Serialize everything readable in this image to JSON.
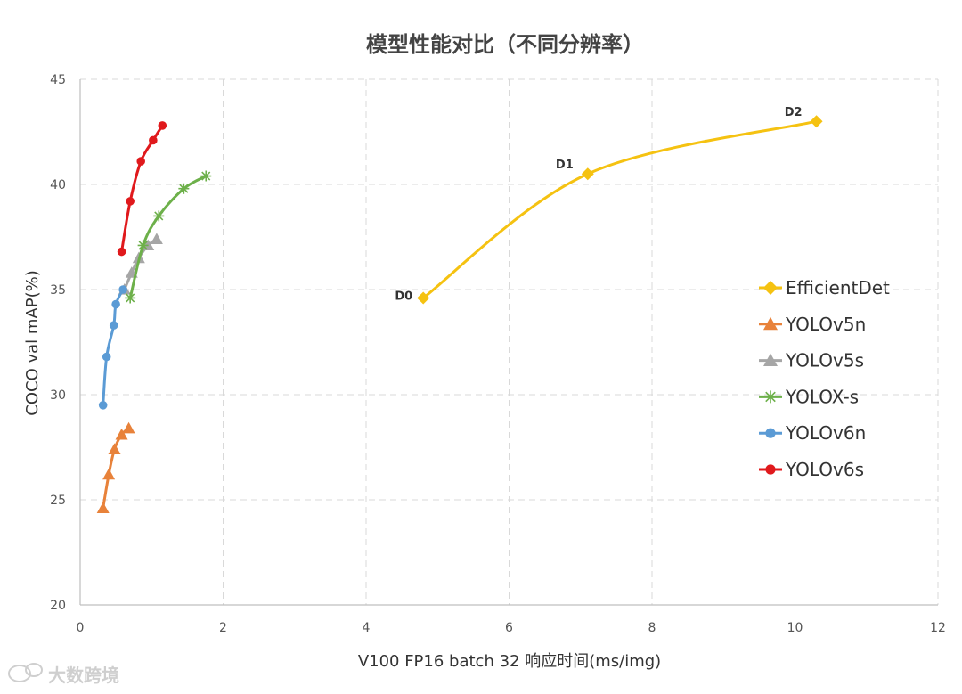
{
  "chart_data": {
    "type": "line",
    "title": "模型性能对比（不同分辨率）",
    "xlabel": "V100 FP16 batch 32 响应时间(ms/img)",
    "ylabel": "COCO val mAP(%)",
    "xlim": [
      0,
      12
    ],
    "ylim": [
      20,
      45
    ],
    "xticks": [
      0,
      2,
      4,
      6,
      8,
      10,
      12
    ],
    "yticks": [
      20,
      25,
      30,
      35,
      40,
      45
    ],
    "grid": true,
    "grid_style": "dashed",
    "legend_position": "right",
    "series": [
      {
        "name": "EfficientDet",
        "color": "#f5c211",
        "marker": "diamond",
        "x": [
          4.8,
          7.1,
          10.3
        ],
        "y": [
          34.6,
          40.5,
          43.0
        ],
        "point_labels": [
          "D0",
          "D1",
          "D2"
        ]
      },
      {
        "name": "YOLOv5n",
        "color": "#e8823a",
        "marker": "triangle",
        "x": [
          0.32,
          0.4,
          0.48,
          0.58,
          0.68
        ],
        "y": [
          24.6,
          26.2,
          27.4,
          28.1,
          28.4
        ]
      },
      {
        "name": "YOLOv5s",
        "color": "#a6a6a6",
        "marker": "triangle",
        "x": [
          0.62,
          0.72,
          0.82,
          0.95,
          1.07
        ],
        "y": [
          35.0,
          35.8,
          36.5,
          37.1,
          37.4
        ]
      },
      {
        "name": "YOLOX-s",
        "color": "#6db04a",
        "marker": "star",
        "x": [
          0.7,
          0.88,
          1.1,
          1.45,
          1.76
        ],
        "y": [
          34.6,
          37.1,
          38.5,
          39.8,
          40.4
        ]
      },
      {
        "name": "YOLOv6n",
        "color": "#5b9bd5",
        "marker": "circle",
        "x": [
          0.32,
          0.37,
          0.47,
          0.5,
          0.6
        ],
        "y": [
          29.5,
          31.8,
          33.3,
          34.3,
          35.0
        ]
      },
      {
        "name": "YOLOv6s",
        "color": "#e0191c",
        "marker": "circle",
        "x": [
          0.58,
          0.7,
          0.85,
          1.02,
          1.15
        ],
        "y": [
          36.8,
          39.2,
          41.1,
          42.1,
          42.8
        ]
      }
    ]
  },
  "watermark": {
    "text": "大数跨境",
    "icon": "chat-bubble-icon"
  }
}
